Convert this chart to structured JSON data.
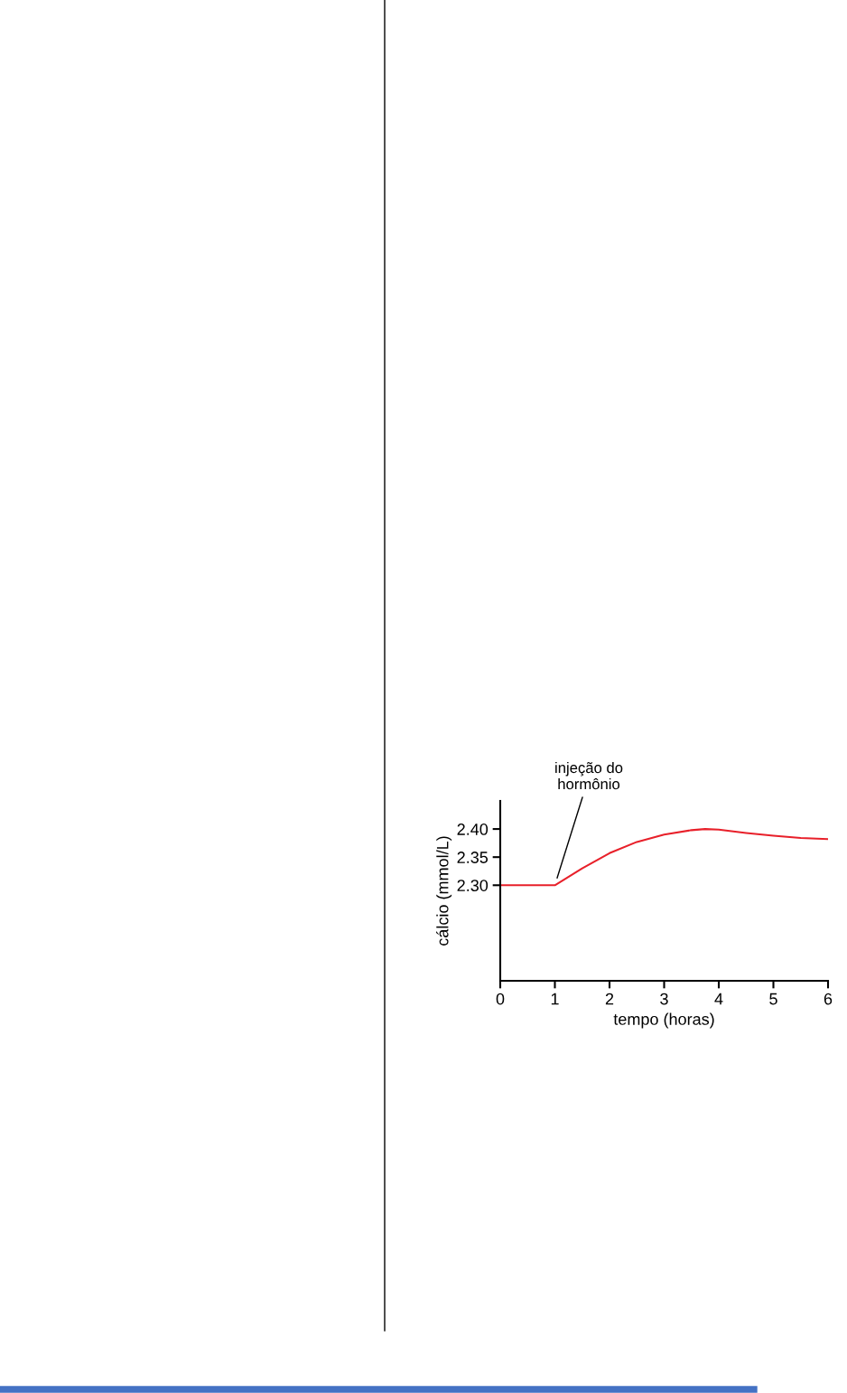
{
  "chart_data": {
    "type": "line",
    "xlabel": "tempo (horas)",
    "ylabel": "cálcio (mmol/L)",
    "series": [
      {
        "color": "#e8202a",
        "x": [
          0,
          1,
          1.5,
          2,
          2.5,
          3,
          3.5,
          3.75,
          4,
          4.5,
          5,
          5.5,
          6
        ],
        "values": [
          2.3,
          2.3,
          2.33,
          2.357,
          2.377,
          2.39,
          2.398,
          2.4,
          2.399,
          2.393,
          2.388,
          2.384,
          2.382
        ]
      }
    ],
    "xlim": [
      0,
      6
    ],
    "xticks": [
      0,
      1,
      2,
      3,
      4,
      5,
      6
    ],
    "ylim": [
      2.13,
      2.45
    ],
    "yticks": [
      {
        "value": 2.3,
        "label": "2.30"
      },
      {
        "value": 2.35,
        "label": "2.35"
      },
      {
        "value": 2.4,
        "label": "2.40"
      }
    ],
    "annotations": [
      {
        "text": "injeção do\nhormônio",
        "x": 1,
        "y": 2.3
      }
    ],
    "grid": false,
    "marker": "none",
    "line_style": "solid"
  }
}
